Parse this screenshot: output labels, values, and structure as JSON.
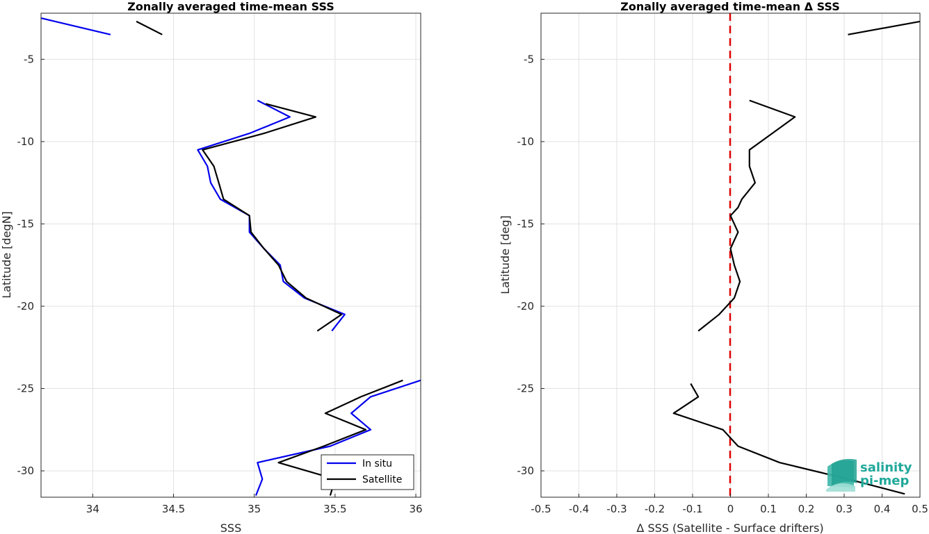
{
  "chart_data": [
    {
      "type": "line",
      "title": "Zonally averaged time-mean SSS",
      "xlabel": "SSS",
      "ylabel": "Latitude [degN]",
      "xlim": [
        33.68,
        36.03
      ],
      "ylim": [
        -31.6,
        -2.2
      ],
      "x_ticks": [
        "34",
        "34.5",
        "35",
        "35.5",
        "36"
      ],
      "y_ticks": [
        "-5",
        "-10",
        "-15",
        "-20",
        "-25",
        "-30"
      ],
      "grid": true,
      "legend_position": "bottom-right",
      "series": [
        {
          "name": "In situ",
          "color": "#0000ee",
          "segments": [
            [
              [
                33.68,
                -2.5
              ],
              [
                34.11,
                -3.5
              ]
            ],
            [
              [
                35.02,
                -7.5
              ],
              [
                35.22,
                -8.5
              ],
              [
                34.97,
                -9.5
              ],
              [
                34.65,
                -10.5
              ],
              [
                34.71,
                -11.5
              ],
              [
                34.73,
                -12.5
              ],
              [
                34.79,
                -13.5
              ],
              [
                34.97,
                -14.5
              ],
              [
                34.97,
                -15.5
              ],
              [
                35.06,
                -16.5
              ],
              [
                35.16,
                -17.5
              ],
              [
                35.18,
                -18.5
              ],
              [
                35.31,
                -19.5
              ],
              [
                35.56,
                -20.5
              ],
              [
                35.48,
                -21.5
              ]
            ],
            [
              [
                36.03,
                -24.5
              ],
              [
                35.72,
                -25.5
              ],
              [
                35.6,
                -26.5
              ],
              [
                35.72,
                -27.5
              ],
              [
                35.47,
                -28.5
              ],
              [
                35.02,
                -29.5
              ],
              [
                35.05,
                -30.5
              ],
              [
                35.01,
                -31.5
              ]
            ]
          ]
        },
        {
          "name": "Satellite",
          "color": "#000000",
          "segments": [
            [
              [
                34.27,
                -2.7
              ],
              [
                34.43,
                -3.5
              ]
            ],
            [
              [
                35.07,
                -7.7
              ],
              [
                35.38,
                -8.5
              ],
              [
                35.06,
                -9.5
              ],
              [
                34.68,
                -10.5
              ],
              [
                34.75,
                -11.5
              ],
              [
                34.78,
                -12.5
              ],
              [
                34.81,
                -13.5
              ],
              [
                34.97,
                -14.5
              ],
              [
                34.98,
                -15.5
              ],
              [
                35.06,
                -16.5
              ],
              [
                35.15,
                -17.5
              ],
              [
                35.2,
                -18.5
              ],
              [
                35.32,
                -19.5
              ],
              [
                35.54,
                -20.5
              ],
              [
                35.39,
                -21.5
              ]
            ],
            [
              [
                35.92,
                -24.5
              ],
              [
                35.66,
                -25.5
              ],
              [
                35.44,
                -26.5
              ],
              [
                35.69,
                -27.5
              ],
              [
                35.43,
                -28.5
              ],
              [
                35.15,
                -29.5
              ],
              [
                35.5,
                -30.5
              ],
              [
                35.47,
                -31.5
              ]
            ]
          ]
        }
      ]
    },
    {
      "type": "line",
      "title": "Zonally averaged time-mean Δ SSS",
      "xlabel": "Δ SSS (Satellite - Surface drifters)",
      "ylabel": "Latitude [deg]",
      "xlim": [
        -0.5,
        0.5
      ],
      "ylim": [
        -31.6,
        -2.2
      ],
      "x_ticks": [
        "-0.5",
        "-0.4",
        "-0.3",
        "-0.2",
        "-0.1",
        "0",
        "0.1",
        "0.2",
        "0.3",
        "0.4",
        "0.5"
      ],
      "y_ticks": [
        "-5",
        "-10",
        "-15",
        "-20",
        "-25",
        "-30"
      ],
      "grid": true,
      "zero_line_color": "#dd0000",
      "series": [
        {
          "color": "#000000",
          "segments": [
            [
              [
                0.31,
                -3.5
              ],
              [
                0.5,
                -2.7
              ]
            ],
            [
              [
                0.05,
                -7.5
              ],
              [
                0.17,
                -8.5
              ],
              [
                0.11,
                -9.5
              ],
              [
                0.05,
                -10.5
              ],
              [
                0.05,
                -11.5
              ],
              [
                0.065,
                -12.5
              ],
              [
                0.03,
                -13.5
              ],
              [
                0.02,
                -14
              ],
              [
                0.0,
                -14.5
              ],
              [
                0.02,
                -15.5
              ],
              [
                0.0,
                -16.5
              ],
              [
                0.01,
                -17.5
              ],
              [
                0.025,
                -18.5
              ],
              [
                0.01,
                -19.5
              ],
              [
                -0.03,
                -20.5
              ],
              [
                -0.085,
                -21.5
              ]
            ],
            [
              [
                -0.105,
                -24.7
              ],
              [
                -0.085,
                -25.5
              ],
              [
                -0.15,
                -26.5
              ],
              [
                -0.02,
                -27.5
              ],
              [
                0.02,
                -28.5
              ],
              [
                0.13,
                -29.5
              ],
              [
                0.31,
                -30.5
              ],
              [
                0.46,
                -31.4
              ]
            ]
          ]
        }
      ]
    }
  ],
  "legend": {
    "items": [
      "In situ",
      "Satellite"
    ]
  },
  "logo": {
    "line1": "salinity",
    "line2": "pi-mep"
  }
}
